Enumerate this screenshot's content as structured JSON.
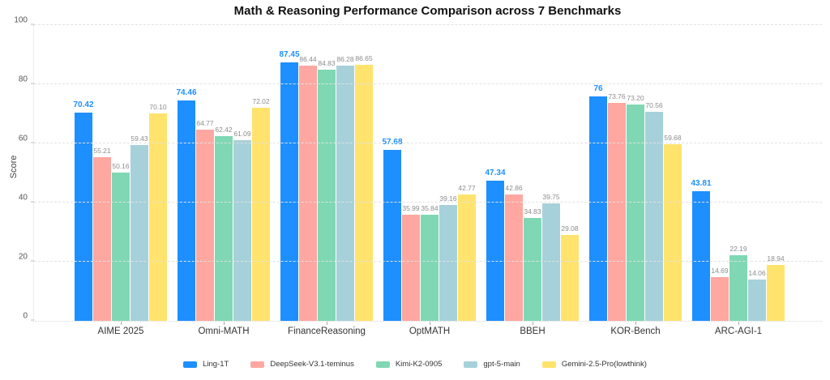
{
  "chart_data": {
    "type": "bar",
    "title": "Math & Reasoning Performance Comparison across 7 Benchmarks",
    "xlabel": "",
    "ylabel": "Score",
    "ylim": [
      0,
      100
    ],
    "yticks": [
      0,
      20,
      40,
      60,
      80,
      100
    ],
    "grid": "horizontal-dashed",
    "legend_position": "bottom-center",
    "categories": [
      "AIME 2025",
      "Omni-MATH",
      "FinanceReasoning",
      "OptMATH",
      "BBEH",
      "KOR-Bench",
      "ARC-AGI-1"
    ],
    "series": [
      {
        "name": "Ling-1T",
        "color": "#1E8FFF",
        "values": [
          70.42,
          74.46,
          87.45,
          57.68,
          47.34,
          76,
          43.81
        ],
        "labels": [
          "70.42",
          "74.46",
          "87.45",
          "57.68",
          "47.34",
          "76",
          "43.81"
        ]
      },
      {
        "name": "DeepSeek-V3.1-teminus",
        "color": "#FFA7A0",
        "values": [
          55.21,
          64.77,
          86.44,
          35.99,
          42.86,
          73.76,
          14.69
        ],
        "labels": [
          "55.21",
          "64.77",
          "86.44",
          "35.99",
          "42.86",
          "73.76",
          "14.69"
        ]
      },
      {
        "name": "Kimi-K2-0905",
        "color": "#7FD8B3",
        "values": [
          50.16,
          62.42,
          84.83,
          35.84,
          34.83,
          73.2,
          22.19
        ],
        "labels": [
          "50.16",
          "62.42",
          "84.83",
          "35.84",
          "34.83",
          "73.20",
          "22.19"
        ]
      },
      {
        "name": "gpt-5-main",
        "color": "#A6D1DA",
        "values": [
          59.43,
          61.09,
          86.28,
          39.16,
          39.75,
          70.56,
          14.06
        ],
        "labels": [
          "59.43",
          "61.09",
          "86.28",
          "39.16",
          "39.75",
          "70.56",
          "14.06"
        ]
      },
      {
        "name": "Gemini-2.5-Pro(lowthink)",
        "color": "#FFE36D",
        "values": [
          70.1,
          72.02,
          86.65,
          42.77,
          29.08,
          59.68,
          18.94
        ],
        "labels": [
          "70.10",
          "72.02",
          "86.65",
          "42.77",
          "29.08",
          "59.68",
          "18.94"
        ]
      }
    ],
    "value_label_style": {
      "highlight_series": "Ling-1T",
      "highlight_color": "#1E8FFF",
      "default_color": "#8c8c8c"
    }
  }
}
